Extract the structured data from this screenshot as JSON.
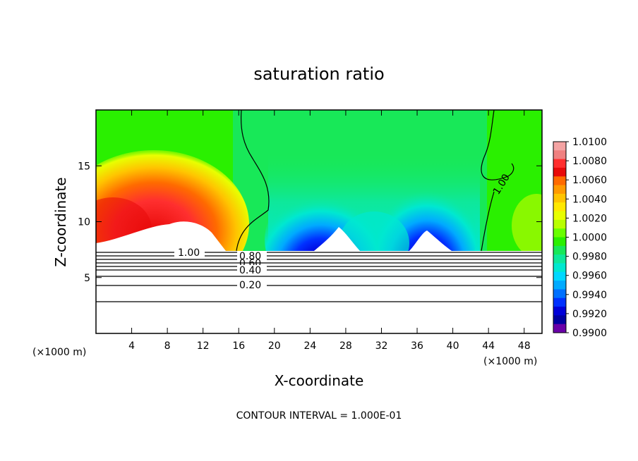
{
  "chart_data": {
    "type": "heatmap",
    "title": "saturation ratio",
    "xlabel": "X-coordinate",
    "ylabel": "Z-coordinate",
    "x_unit": "(×1000 m)",
    "footer": "CONTOUR INTERVAL = 1.000E-01",
    "xlim": [
      0,
      50
    ],
    "ylim": [
      0,
      20
    ],
    "x_ticks": [
      4,
      8,
      12,
      16,
      20,
      24,
      28,
      32,
      36,
      40,
      44,
      48
    ],
    "y_ticks": [
      5,
      10,
      15
    ],
    "colorbar": {
      "vmin": 0.99,
      "vmax": 1.01,
      "labels": [
        "1.0100",
        "1.0080",
        "1.0060",
        "1.0040",
        "1.0020",
        "1.0000",
        "0.9980",
        "0.9960",
        "0.9940",
        "0.9920",
        "0.9900"
      ],
      "colors": [
        "#f4a3a3",
        "#f08080",
        "#ff2f2f",
        "#e80a0a",
        "#ff6a00",
        "#ff9a00",
        "#ffc400",
        "#ffe800",
        "#e8ff00",
        "#b8ff00",
        "#69ff00",
        "#2af000",
        "#18e858",
        "#0ee89a",
        "#00e8d0",
        "#00d8ff",
        "#00aaff",
        "#0070ff",
        "#0030ff",
        "#0000d8",
        "#0000a0",
        "#6a00a8"
      ]
    },
    "contour_labels_lower": [
      "1.00",
      "0.80",
      "0.60",
      "0.40",
      "0.20"
    ],
    "contour_levels_lower": [
      1.0,
      0.8,
      0.6,
      0.4,
      0.2
    ],
    "contour_label_upper": "1.00"
  }
}
